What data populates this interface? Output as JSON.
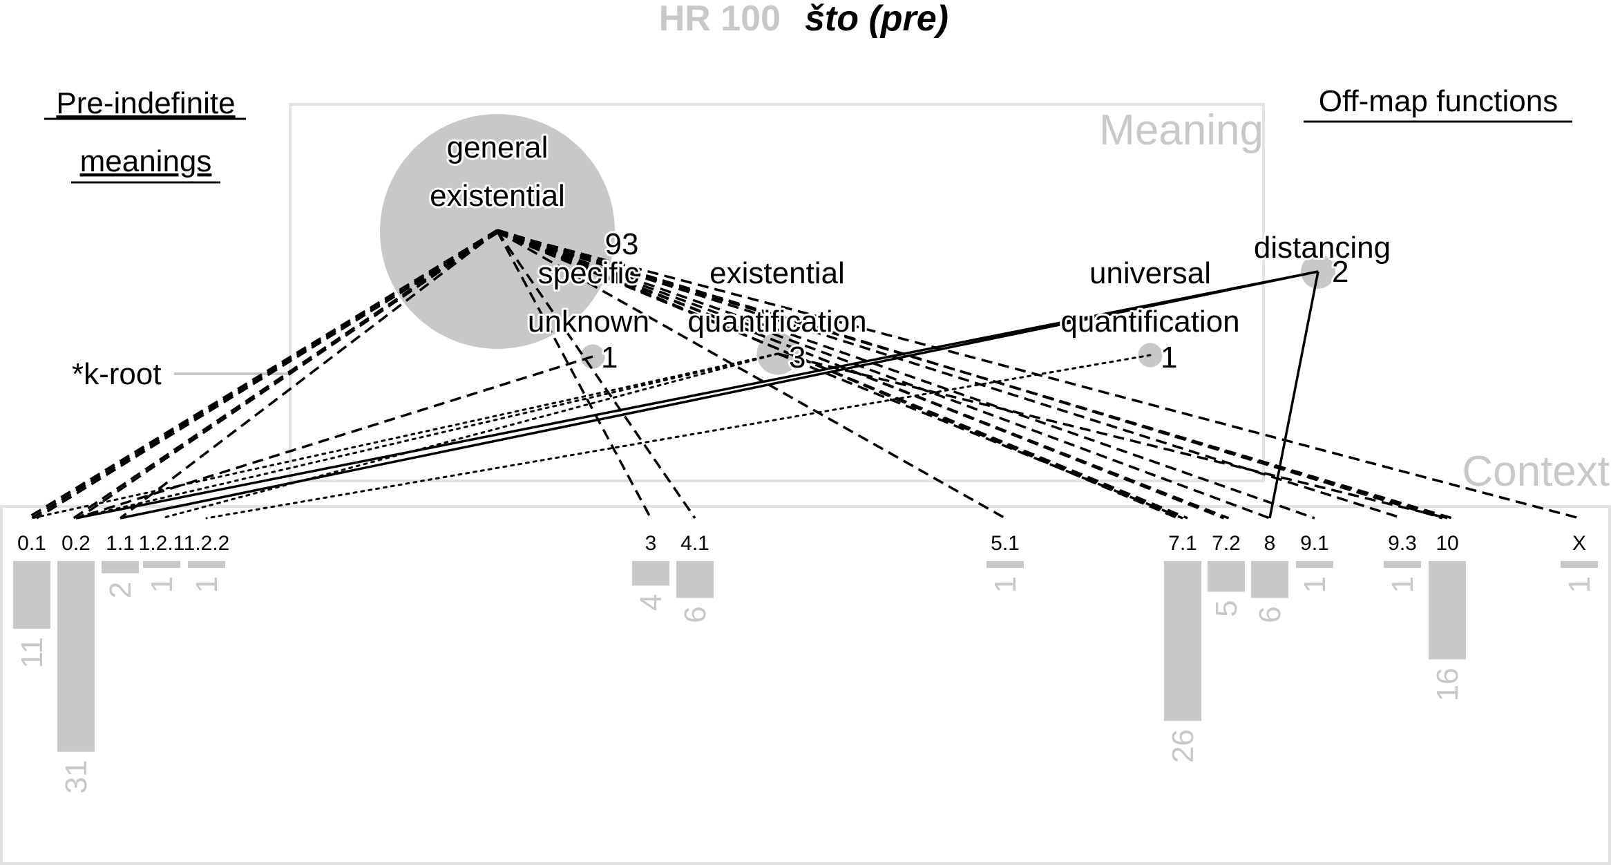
{
  "header": {
    "id_label": "HR 100",
    "word": "što (pre)"
  },
  "side_labels": {
    "pre_indefinite_line1": "Pre-indefinite",
    "pre_indefinite_line2": "meanings",
    "off_map": "Off-map functions",
    "k_root": "*k-root"
  },
  "panels": {
    "meaning": "Meaning",
    "context": "Context"
  },
  "colors": {
    "grey": "#c8c8c8",
    "frame": "#e2e2e2",
    "ink": "#000000"
  },
  "meaning_nodes": [
    {
      "key": "ge",
      "label_lines": [
        "general",
        "existential"
      ],
      "count": "93"
    },
    {
      "key": "su",
      "label_lines": [
        "specific",
        "unknown"
      ],
      "count": "1"
    },
    {
      "key": "eq",
      "label_lines": [
        "existential",
        "quantification"
      ],
      "count": "3"
    },
    {
      "key": "uq",
      "label_lines": [
        "universal",
        "quantification"
      ],
      "count": "1"
    },
    {
      "key": "dis",
      "label_lines": [
        "distancing"
      ],
      "count": "2"
    }
  ],
  "context_bars": [
    {
      "label": "0.1",
      "count": "11"
    },
    {
      "label": "0.2",
      "count": "31"
    },
    {
      "label": "1.1",
      "count": "2"
    },
    {
      "label": "1.2.1",
      "count": "1"
    },
    {
      "label": "1.2.2",
      "count": "1"
    },
    {
      "label": "3",
      "count": "4"
    },
    {
      "label": "4.1",
      "count": "6"
    },
    {
      "label": "5.1",
      "count": "1"
    },
    {
      "label": "7.1",
      "count": "26"
    },
    {
      "label": "7.2",
      "count": "5"
    },
    {
      "label": "8",
      "count": "6"
    },
    {
      "label": "9.1",
      "count": "1"
    },
    {
      "label": "9.3",
      "count": "1"
    },
    {
      "label": "10",
      "count": "16"
    },
    {
      "label": "X",
      "count": "1"
    }
  ],
  "links": [
    {
      "from": "ge",
      "to": "0.1",
      "style": "dashed",
      "n": 3
    },
    {
      "from": "ge",
      "to": "0.2",
      "style": "dashed",
      "n": 2
    },
    {
      "from": "ge",
      "to": "1.1",
      "style": "dashed",
      "n": 1
    },
    {
      "from": "ge",
      "to": "3",
      "style": "dashed",
      "n": 1
    },
    {
      "from": "ge",
      "to": "4.1",
      "style": "dashed",
      "n": 1
    },
    {
      "from": "ge",
      "to": "5.1",
      "style": "dashed",
      "n": 1
    },
    {
      "from": "ge",
      "to": "7.1",
      "style": "dashed",
      "n": 3
    },
    {
      "from": "ge",
      "to": "7.2",
      "style": "dashed",
      "n": 2
    },
    {
      "from": "ge",
      "to": "8",
      "style": "dashed",
      "n": 1
    },
    {
      "from": "ge",
      "to": "9.1",
      "style": "dashed",
      "n": 1
    },
    {
      "from": "ge",
      "to": "9.3",
      "style": "dashed",
      "n": 1
    },
    {
      "from": "ge",
      "to": "10",
      "style": "dashed",
      "n": 3
    },
    {
      "from": "ge",
      "to": "X",
      "style": "dashed",
      "n": 1
    },
    {
      "from": "su",
      "to": "0.2",
      "style": "dashed",
      "n": 1
    },
    {
      "from": "eq",
      "to": "0.1",
      "style": "dotted",
      "n": 1
    },
    {
      "from": "eq",
      "to": "0.2",
      "style": "dotted",
      "n": 1
    },
    {
      "from": "eq",
      "to": "1.2.1",
      "style": "dotted",
      "n": 1
    },
    {
      "from": "eq",
      "to": "7.1",
      "style": "dashed",
      "n": 1
    },
    {
      "from": "eq",
      "to": "10",
      "style": "dashed",
      "n": 1
    },
    {
      "from": "uq",
      "to": "1.2.2",
      "style": "dotted",
      "n": 1
    },
    {
      "from": "dis",
      "to": "0.2",
      "style": "solid",
      "n": 1
    },
    {
      "from": "dis",
      "to": "1.1",
      "style": "solid",
      "n": 1
    },
    {
      "from": "dis",
      "to": "8",
      "style": "solid",
      "n": 1
    }
  ]
}
